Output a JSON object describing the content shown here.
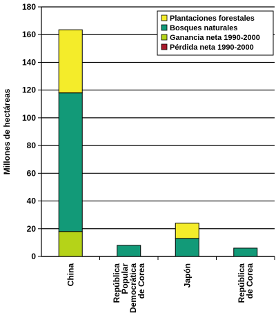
{
  "chart_data": {
    "type": "bar",
    "stacked": true,
    "title": "",
    "xlabel": "",
    "ylabel": "Millones de hectáreas",
    "ylim": [
      0,
      180
    ],
    "yticks": [
      0,
      20,
      40,
      60,
      80,
      100,
      120,
      140,
      160,
      180
    ],
    "grid": true,
    "legend_position": "top-right",
    "categories": [
      [
        "China"
      ],
      [
        "República",
        "Popular",
        "Democrática",
        "de Corea"
      ],
      [
        "Japón"
      ],
      [
        "República",
        "de Corea"
      ]
    ],
    "series": [
      {
        "name": "Ganancia neta 1990-2000",
        "color": "#b5d318",
        "values": [
          18,
          0,
          0,
          0
        ]
      },
      {
        "name": "Bosques naturales",
        "color": "#129a78",
        "values": [
          100,
          8,
          13,
          6
        ]
      },
      {
        "name": "Plantaciones forestales",
        "color": "#f4ec2a",
        "values": [
          45.5,
          0,
          11,
          0
        ]
      },
      {
        "name": "Pérdida neta  1990-2000",
        "color": "#a8182a",
        "values": [
          0,
          0,
          0,
          0
        ]
      }
    ],
    "legend_order": [
      "Plantaciones forestales",
      "Bosques naturales",
      "Ganancia neta 1990-2000",
      "Pérdida neta  1990-2000"
    ]
  }
}
